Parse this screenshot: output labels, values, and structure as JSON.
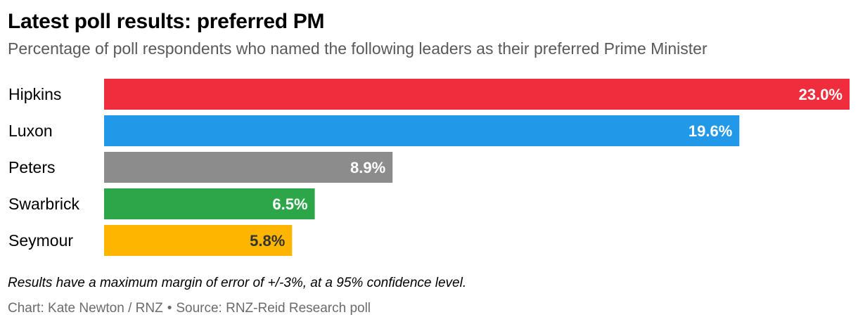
{
  "title": "Latest poll results: preferred PM",
  "subtitle": "Percentage of poll respondents who named the following leaders as their preferred Prime Minister",
  "note": "Results have a maximum margin of error of +/-3%, at a 95% confidence level.",
  "credits": {
    "chart": "Chart: Kate Newton / RNZ",
    "separator": "•",
    "source": "Source: RNZ-Reid Research poll"
  },
  "chart_data": {
    "type": "bar",
    "orientation": "horizontal",
    "categories": [
      "Hipkins",
      "Luxon",
      "Peters",
      "Swarbrick",
      "Seymour"
    ],
    "values": [
      23.0,
      19.6,
      8.9,
      6.5,
      5.8
    ],
    "value_labels": [
      "23.0%",
      "19.6%",
      "8.9%",
      "6.5%",
      "5.8%"
    ],
    "colors": [
      "#ef2d3c",
      "#2198e8",
      "#8c8c8c",
      "#2da64a",
      "#fdb500"
    ],
    "label_colors": [
      "#ffffff",
      "#ffffff",
      "#ffffff",
      "#ffffff",
      "#333333"
    ],
    "xlim": [
      0,
      23.0
    ],
    "grid": false,
    "legend": "none"
  }
}
